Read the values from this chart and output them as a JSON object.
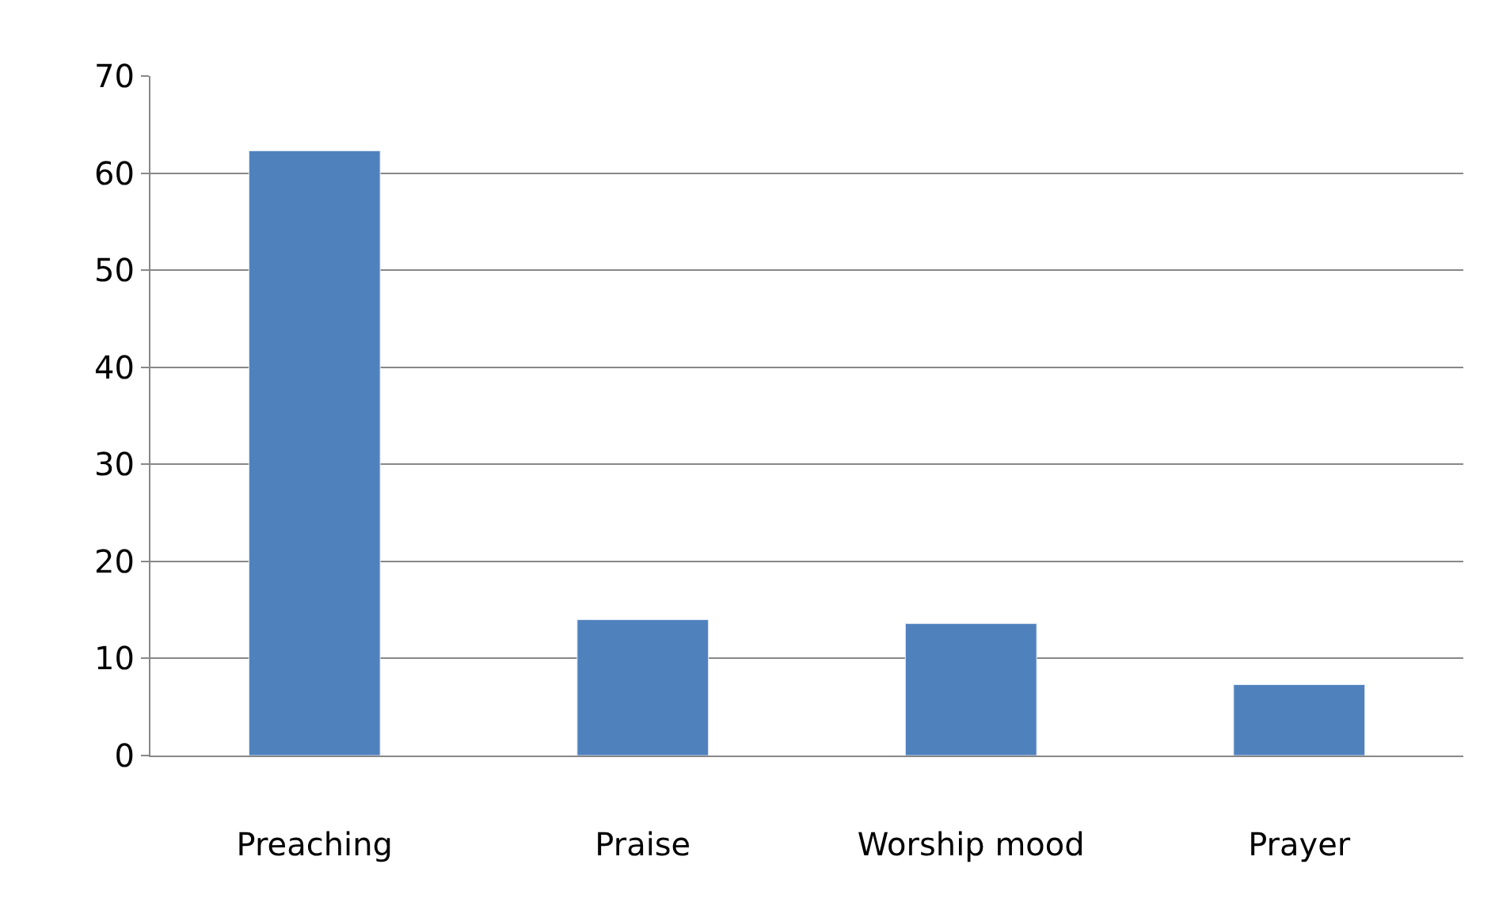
{
  "chart_data": {
    "type": "bar",
    "categories": [
      "Preaching",
      "Praise",
      "Worship mood",
      "Prayer"
    ],
    "series": [
      {
        "color": "#4f81bd",
        "values": [
          62.3,
          14.0,
          13.6,
          7.3
        ]
      }
    ],
    "ylim": [
      0,
      70
    ],
    "yticks": [
      0,
      10,
      20,
      30,
      40,
      50,
      60,
      70
    ],
    "grid": "y"
  }
}
